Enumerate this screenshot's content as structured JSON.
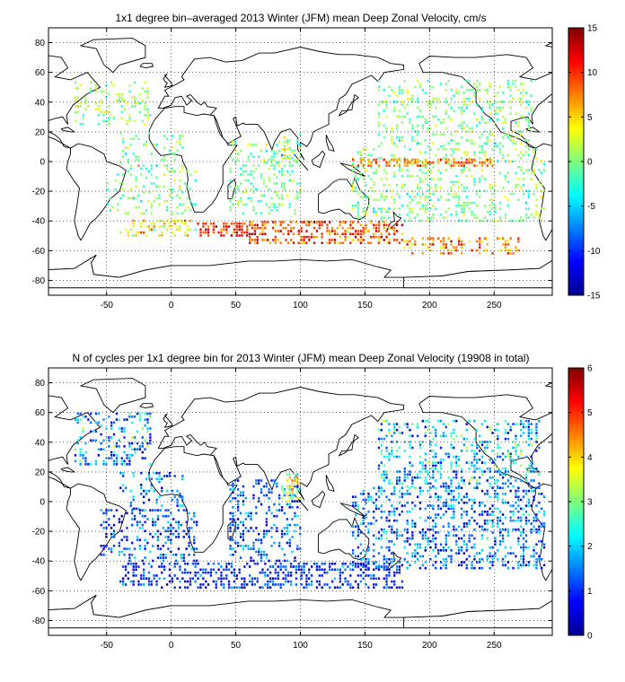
{
  "chart_data": [
    {
      "type": "heatmap",
      "title": "1x1 degree bin–averaged 2013 Winter (JFM) mean Deep Zonal Velocity, cm/s",
      "xlabel": "",
      "ylabel": "",
      "xlim": [
        -95,
        295
      ],
      "ylim": [
        -90,
        90
      ],
      "x_ticks": [
        -50,
        0,
        50,
        100,
        150,
        200,
        250
      ],
      "y_ticks": [
        80,
        60,
        40,
        20,
        0,
        -20,
        -40,
        -60,
        -80
      ],
      "grid": true,
      "colorbar": {
        "range": [
          -15,
          15
        ],
        "ticks": [
          15,
          10,
          5,
          0,
          -5,
          -10,
          -15
        ],
        "colormap": "jet"
      },
      "regions": [
        {
          "lon": [
            -75,
            -15
          ],
          "lat": [
            25,
            55
          ],
          "density": 0.22,
          "mean": 0.5,
          "spread": 4
        },
        {
          "lon": [
            -40,
            10
          ],
          "lat": [
            -5,
            20
          ],
          "density": 0.18,
          "mean": 0,
          "spread": 5
        },
        {
          "lon": [
            -50,
            20
          ],
          "lat": [
            -35,
            -5
          ],
          "density": 0.2,
          "mean": 0,
          "spread": 4
        },
        {
          "lon": [
            45,
            100
          ],
          "lat": [
            -35,
            15
          ],
          "density": 0.24,
          "mean": -0.5,
          "spread": 4
        },
        {
          "lon": [
            85,
            100
          ],
          "lat": [
            0,
            20
          ],
          "density": 0.3,
          "mean": 0,
          "spread": 6
        },
        {
          "lon": [
            160,
            280
          ],
          "lat": [
            10,
            55
          ],
          "density": 0.24,
          "mean": 0,
          "spread": 4
        },
        {
          "lon": [
            140,
            290
          ],
          "lat": [
            -40,
            10
          ],
          "density": 0.24,
          "mean": 0,
          "spread": 4
        },
        {
          "lon": [
            140,
            250
          ],
          "lat": [
            -3,
            3
          ],
          "density": 0.5,
          "mean": 8,
          "spread": 4
        },
        {
          "lon": [
            -40,
            20
          ],
          "lat": [
            -50,
            -38
          ],
          "density": 0.35,
          "mean": 4,
          "spread": 6
        },
        {
          "lon": [
            20,
            60
          ],
          "lat": [
            -50,
            -40
          ],
          "density": 0.5,
          "mean": 10,
          "spread": 4
        },
        {
          "lon": [
            60,
            180
          ],
          "lat": [
            -55,
            -40
          ],
          "density": 0.45,
          "mean": 9,
          "spread": 5
        },
        {
          "lon": [
            180,
            270
          ],
          "lat": [
            -62,
            -50
          ],
          "density": 0.3,
          "mean": 8,
          "spread": 5
        }
      ]
    },
    {
      "type": "heatmap",
      "title": "N of cycles per 1x1 degree bin for 2013 Winter (JFM) mean Deep Zonal Velocity (19908 in total)",
      "xlabel": "",
      "ylabel": "",
      "xlim": [
        -95,
        295
      ],
      "ylim": [
        -90,
        90
      ],
      "x_ticks": [
        -50,
        0,
        50,
        100,
        150,
        200,
        250
      ],
      "y_ticks": [
        80,
        60,
        40,
        20,
        0,
        -20,
        -40,
        -60,
        -80
      ],
      "grid": true,
      "colorbar": {
        "range": [
          0,
          6
        ],
        "ticks": [
          6,
          5,
          4,
          3,
          2,
          1,
          0
        ],
        "colormap": "jet"
      },
      "regions": [
        {
          "lon": [
            -75,
            -15
          ],
          "lat": [
            25,
            60
          ],
          "density": 0.3,
          "mean": 1.6,
          "spread": 1.4
        },
        {
          "lon": [
            -40,
            10
          ],
          "lat": [
            -5,
            20
          ],
          "density": 0.22,
          "mean": 1.4,
          "spread": 1.2
        },
        {
          "lon": [
            -55,
            20
          ],
          "lat": [
            -40,
            -5
          ],
          "density": 0.3,
          "mean": 1.2,
          "spread": 1.0
        },
        {
          "lon": [
            45,
            100
          ],
          "lat": [
            -40,
            15
          ],
          "density": 0.3,
          "mean": 1.3,
          "spread": 1.0
        },
        {
          "lon": [
            85,
            100
          ],
          "lat": [
            0,
            20
          ],
          "density": 0.45,
          "mean": 3.5,
          "spread": 2.0
        },
        {
          "lon": [
            160,
            285
          ],
          "lat": [
            10,
            55
          ],
          "density": 0.32,
          "mean": 1.8,
          "spread": 1.6
        },
        {
          "lon": [
            140,
            290
          ],
          "lat": [
            -45,
            10
          ],
          "density": 0.34,
          "mean": 1.4,
          "spread": 1.2
        },
        {
          "lon": [
            -40,
            180
          ],
          "lat": [
            -58,
            -40
          ],
          "density": 0.4,
          "mean": 1.0,
          "spread": 0.8
        }
      ]
    }
  ]
}
